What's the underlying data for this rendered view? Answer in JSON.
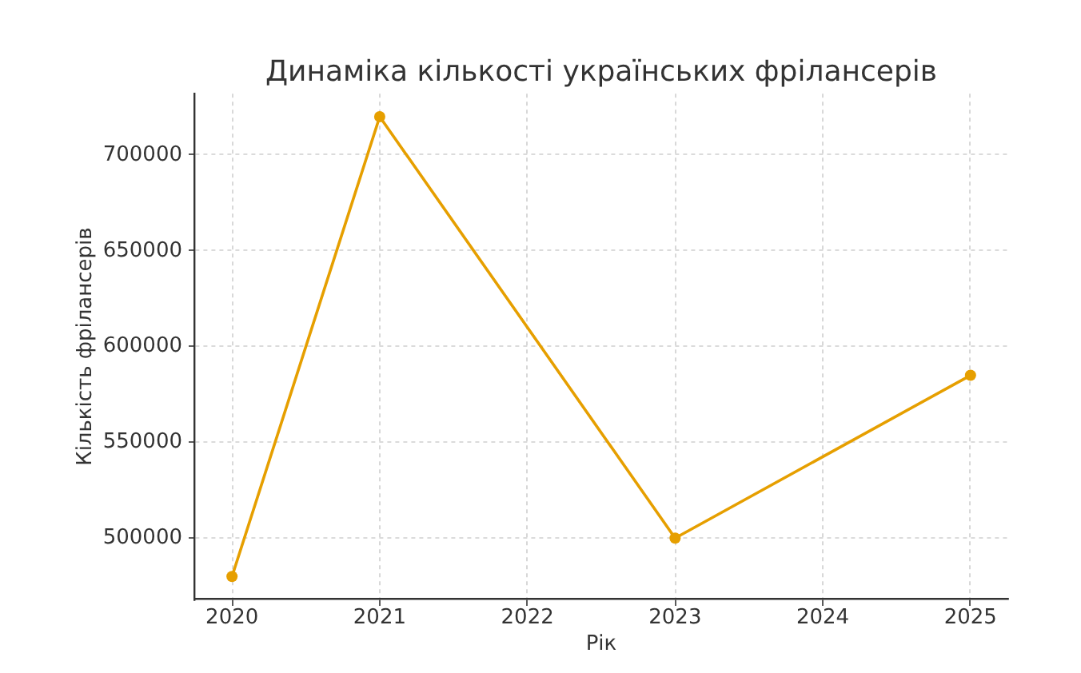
{
  "chart_data": {
    "type": "line",
    "title": "Динаміка кількості українських фрілансерів",
    "xlabel": "Рік",
    "ylabel": "Кількість фрілансерів",
    "x": [
      2020,
      2021,
      2023,
      2025
    ],
    "series": [
      {
        "color": "#e69f00",
        "values": [
          480000,
          720000,
          500000,
          585000
        ]
      }
    ],
    "xlim": [
      2019.75,
      2025.25
    ],
    "xticks": [
      2020,
      2021,
      2022,
      2023,
      2024,
      2025
    ],
    "ylim": [
      468000,
      732000
    ],
    "yticks": [
      500000,
      550000,
      600000,
      650000,
      700000
    ],
    "grid": true,
    "marker": "circle",
    "line_style": "solid"
  }
}
